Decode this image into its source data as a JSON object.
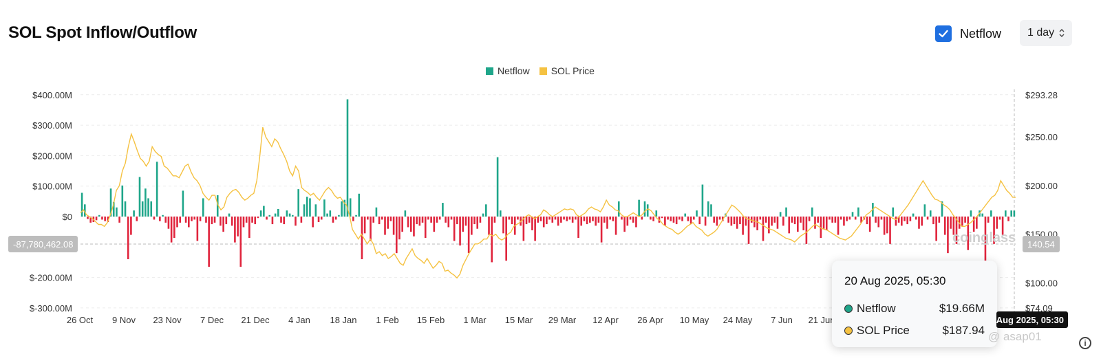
{
  "title": "SOL Spot Inflow/Outflow",
  "controls": {
    "netflow_toggle": {
      "label": "Netflow",
      "checked": true
    },
    "interval": {
      "value": "1 day",
      "icon": "chevron-up-down-icon"
    }
  },
  "colors": {
    "positive": "#1fa68a",
    "negative": "#e0243c",
    "price": "#f5c242",
    "accent": "#1f6fe0"
  },
  "tooltip": {
    "date": "20 Aug 2025, 05:30",
    "rows": [
      {
        "label": "Netflow",
        "value": "$19.66M"
      },
      {
        "label": "SOL Price",
        "value": "$187.94"
      }
    ]
  },
  "crosshair": {
    "left_value": "-87,780,462.08",
    "right_value": "140.54",
    "x_value": "20 Aug 2025, 05:30"
  },
  "watermark": "coinglass",
  "credit": "@ asap01",
  "chart_data": {
    "type": "bar",
    "legend": [
      "Netflow",
      "SOL Price"
    ],
    "x_ticks": [
      "26 Oct",
      "9 Nov",
      "23 Nov",
      "7 Dec",
      "21 Dec",
      "4 Jan",
      "18 Jan",
      "1 Feb",
      "15 Feb",
      "1 Mar",
      "15 Mar",
      "29 Mar",
      "12 Apr",
      "26 Apr",
      "10 May",
      "24 May",
      "7 Jun",
      "21 Jun"
    ],
    "y_left_ticks": [
      "$400.00M",
      "$300.00M",
      "$200.00M",
      "$100.00M",
      "$0",
      "$-200.00M",
      "$-300.00M"
    ],
    "y_left_range": [
      -300,
      400
    ],
    "y_right_ticks": [
      "$293.28",
      "$250.00",
      "$200.00",
      "$150.00",
      "$100.00",
      "$74.09"
    ],
    "y_right_range": [
      74.09,
      293.28
    ],
    "series": [
      {
        "name": "Netflow",
        "unit": "$M",
        "values": [
          78,
          40,
          -8,
          -20,
          -18,
          -12,
          5,
          -10,
          -15,
          -18,
          92,
          48,
          30,
          -20,
          102,
          50,
          -140,
          -60,
          20,
          -15,
          130,
          50,
          92,
          60,
          50,
          -10,
          180,
          -15,
          5,
          -20,
          -40,
          -85,
          -70,
          -35,
          -20,
          85,
          -20,
          -35,
          -15,
          -10,
          -80,
          -15,
          60,
          -20,
          -165,
          -25,
          -20,
          70,
          -30,
          -50,
          -25,
          10,
          -30,
          -85,
          -65,
          -165,
          -35,
          -20,
          -70,
          -20,
          -25,
          -5,
          20,
          35,
          -10,
          5,
          -25,
          10,
          25,
          -20,
          -25,
          20,
          10,
          5,
          -30,
          90,
          -20,
          40,
          65,
          60,
          -35,
          40,
          -18,
          -10,
          56,
          10,
          20,
          -20,
          -10,
          5,
          50,
          55,
          385,
          60,
          -15,
          5,
          75,
          -140,
          -55,
          -10,
          -80,
          -20,
          30,
          -25,
          -10,
          -60,
          -40,
          -15,
          -60,
          -120,
          -75,
          -50,
          20,
          -35,
          -50,
          -65,
          -25,
          -30,
          -20,
          -70,
          -10,
          -20,
          -50,
          -20,
          -10,
          45,
          -20,
          -35,
          -10,
          -80,
          -25,
          -95,
          -50,
          -30,
          -120,
          -60,
          -25,
          -40,
          -20,
          10,
          40,
          -60,
          -150,
          -20,
          195,
          20,
          -55,
          -145,
          -10,
          -25,
          -60,
          -10,
          -30,
          -80,
          -25,
          -20,
          -45,
          -80,
          -20,
          -15,
          -35,
          -25,
          -10,
          -20,
          -10,
          -30,
          -20,
          -10,
          -15,
          -10,
          -20,
          -10,
          -70,
          -30,
          -15,
          -25,
          -20,
          -15,
          -30,
          -20,
          -85,
          -20,
          -40,
          -10,
          -15,
          -60,
          50,
          -10,
          -50,
          -30,
          -10,
          -20,
          -35,
          55,
          -10,
          50,
          40,
          -10,
          -15,
          20,
          -20,
          -5,
          -30,
          -10,
          -15,
          -20,
          -25,
          -10,
          -15,
          10,
          -15,
          -25,
          -10,
          20,
          -25,
          105,
          -30,
          50,
          40,
          -20,
          -30,
          -10,
          -15,
          10,
          -20,
          -30,
          -25,
          -40,
          -25,
          -60,
          -30,
          -90,
          -20,
          -35,
          -45,
          -10,
          -80,
          -20,
          -55,
          -30,
          -20,
          -40,
          15,
          -30,
          30,
          -55,
          -20,
          -25,
          -50,
          -20,
          -45,
          -90,
          -15,
          30,
          -40,
          -20,
          -70,
          -40,
          -45,
          -10,
          -20,
          -20,
          -60,
          -10,
          -30,
          -15,
          -10,
          15,
          -10,
          30,
          -20,
          -10,
          -25,
          -50,
          45,
          -20,
          -35,
          -10,
          -60,
          -55,
          -90,
          30,
          -30,
          -20,
          -30,
          -15,
          -25,
          -15,
          10,
          -10,
          -40,
          -30,
          40,
          -10,
          20,
          -25,
          -80,
          -20,
          50,
          -60,
          -120,
          -40,
          -60,
          -90,
          -40,
          -30,
          -20,
          -110,
          20,
          -50,
          -40,
          20,
          10,
          -150,
          -20,
          20,
          -90,
          -40,
          -10,
          -60,
          20,
          -15,
          20,
          19.66
        ]
      },
      {
        "name": "SOL Price",
        "unit": "$",
        "values": [
          172,
          175,
          170,
          168,
          166,
          163,
          160,
          160,
          158,
          162,
          170,
          180,
          195,
          200,
          215,
          223,
          240,
          253,
          245,
          236,
          228,
          225,
          220,
          225,
          240,
          235,
          232,
          230,
          220,
          218,
          214,
          210,
          210,
          208,
          214,
          220,
          222,
          214,
          208,
          205,
          200,
          192,
          188,
          185,
          190,
          190,
          180,
          175,
          178,
          188,
          192,
          195,
          196,
          193,
          188,
          185,
          187,
          190,
          192,
          205,
          230,
          260,
          250,
          245,
          240,
          248,
          245,
          238,
          232,
          225,
          215,
          210,
          220,
          215,
          198,
          195,
          193,
          190,
          192,
          188,
          185,
          190,
          195,
          198,
          195,
          190,
          187,
          188,
          183,
          180,
          170,
          155,
          150,
          145,
          150,
          145,
          140,
          145,
          140,
          130,
          132,
          128,
          130,
          125,
          127,
          130,
          125,
          120,
          118,
          125,
          130,
          135,
          128,
          125,
          123,
          120,
          125,
          120,
          115,
          118,
          122,
          120,
          112,
          113,
          110,
          108,
          105,
          109,
          118,
          124,
          130,
          135,
          140,
          140,
          142,
          145,
          145,
          150,
          148,
          150,
          146,
          144,
          146,
          150,
          152,
          158,
          160,
          162,
          165,
          168,
          170,
          168,
          166,
          168,
          170,
          175,
          173,
          170,
          168,
          170,
          172,
          174,
          176,
          175,
          176,
          175,
          170,
          168,
          170,
          172,
          176,
          178,
          176,
          175,
          173,
          178,
          185,
          180,
          178,
          175,
          174,
          170,
          168,
          168,
          170,
          172,
          170,
          168,
          170,
          174,
          176,
          174,
          170,
          166,
          164,
          160,
          158,
          156,
          155,
          152,
          150,
          152,
          155,
          158,
          160,
          162,
          158,
          156,
          154,
          150,
          148,
          150,
          152,
          155,
          160,
          165,
          170,
          175,
          180,
          178,
          175,
          172,
          168,
          166,
          165,
          164,
          163,
          162,
          160,
          158,
          156,
          155,
          154,
          152,
          150,
          148,
          146,
          145,
          144,
          142,
          145,
          148,
          150,
          152,
          155,
          158,
          160,
          158,
          156,
          155,
          154,
          152,
          150,
          148,
          146,
          145,
          144,
          146,
          148,
          152,
          156,
          160,
          165,
          170,
          172,
          175,
          178,
          176,
          174,
          172,
          170,
          168,
          166,
          165,
          168,
          172,
          176,
          180,
          185,
          190,
          195,
          200,
          205,
          200,
          195,
          190,
          186,
          185,
          183,
          180,
          178,
          175,
          170,
          166,
          162,
          158,
          158,
          160,
          162,
          165,
          168,
          172,
          176,
          180,
          184,
          188,
          190,
          195,
          205,
          200,
          195,
          192,
          188,
          187.94
        ]
      }
    ]
  }
}
